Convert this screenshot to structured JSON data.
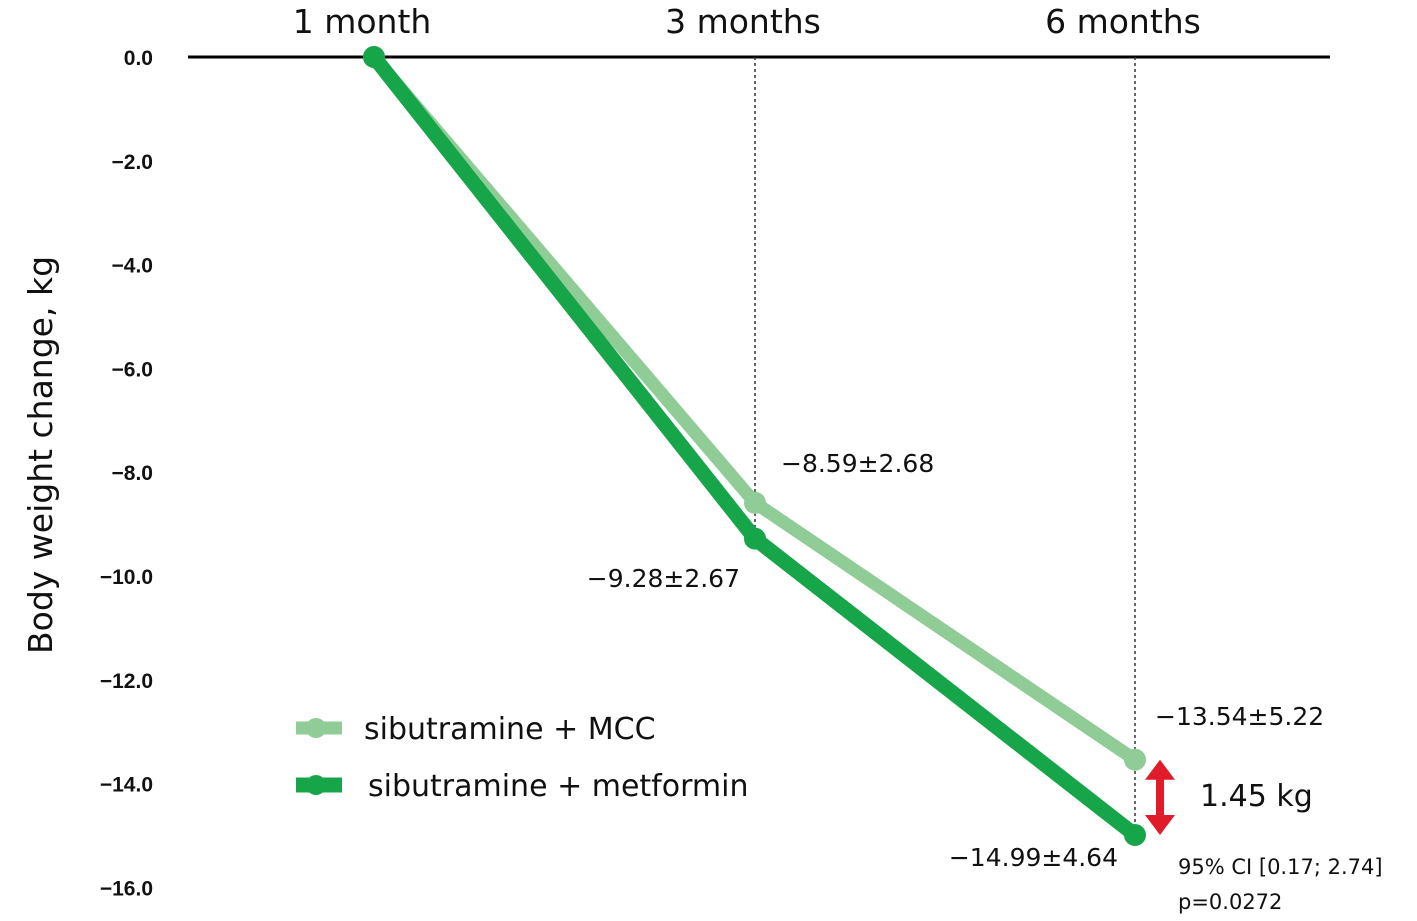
{
  "chart_data": {
    "type": "line",
    "categories": [
      "1 month",
      "3 months",
      "6 months"
    ],
    "ylabel": "Body weight change, kg",
    "ylim": [
      -16,
      0
    ],
    "yticks": [
      "0.0",
      "−2.0",
      "−4.0",
      "−6.0",
      "−8.0",
      "−10.0",
      "−12.0",
      "−14.0",
      "−16.0"
    ],
    "series": [
      {
        "name": "sibutramine + MCC",
        "color": "#8fcc96",
        "values": [
          0,
          -8.59,
          -13.54
        ],
        "labels": [
          "",
          "−8.59±2.68",
          "−13.54±5.22"
        ]
      },
      {
        "name": "sibutramine + metformin",
        "color": "#17a54a",
        "values": [
          0,
          -9.28,
          -14.99
        ],
        "labels": [
          "",
          "−9.28±2.67",
          "−14.99±4.64"
        ]
      }
    ],
    "annotation": {
      "difference": "1.45 kg",
      "ci": "95% CI [0.17; 2.74]",
      "p": "p=0.0272",
      "arrow_color": "#e01b2a"
    }
  }
}
